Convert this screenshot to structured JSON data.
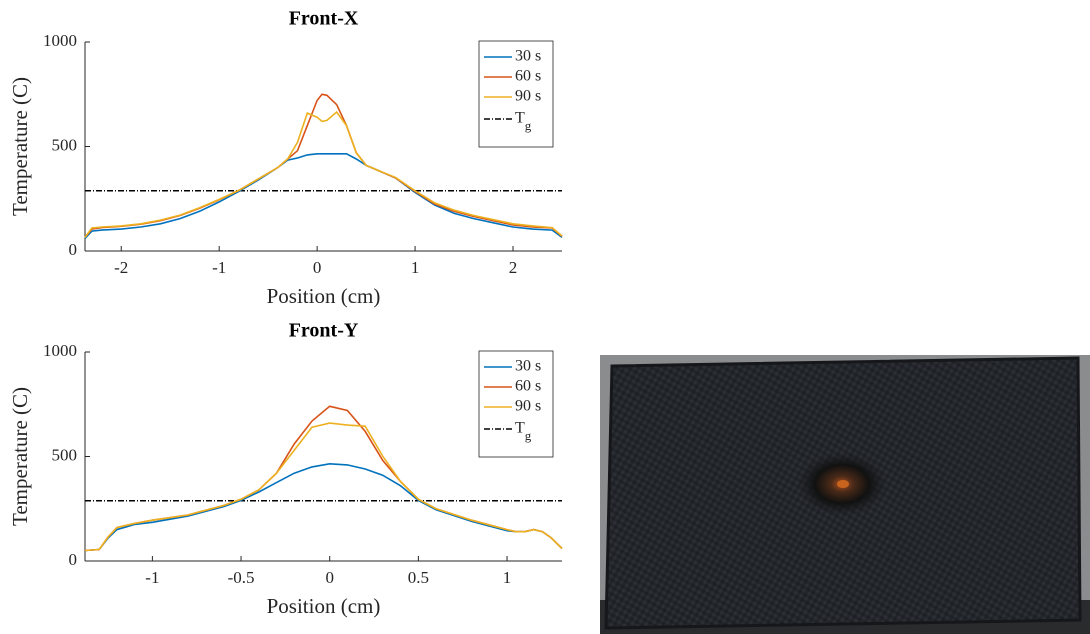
{
  "chart_data": [
    {
      "type": "line",
      "title": "Front-X",
      "xlabel": "Position (cm)",
      "ylabel": "Temperature (C)",
      "x": [
        -2.37,
        -2.3,
        -2.2,
        -2.0,
        -1.8,
        -1.6,
        -1.4,
        -1.2,
        -1.0,
        -0.8,
        -0.6,
        -0.4,
        -0.3,
        -0.2,
        -0.1,
        0,
        0.05,
        0.1,
        0.2,
        0.3,
        0.4,
        0.5,
        0.6,
        0.8,
        1.0,
        1.2,
        1.4,
        1.6,
        1.8,
        2.0,
        2.2,
        2.4,
        2.5
      ],
      "series": [
        {
          "name": "30 s",
          "color": "#0072bd",
          "values": [
            60,
            95,
            100,
            105,
            115,
            130,
            155,
            190,
            235,
            285,
            340,
            400,
            435,
            445,
            460,
            465,
            465,
            465,
            465,
            465,
            440,
            410,
            390,
            350,
            280,
            220,
            180,
            155,
            135,
            115,
            105,
            100,
            65
          ]
        },
        {
          "name": "60 s",
          "color": "#d95319",
          "values": [
            65,
            105,
            112,
            118,
            128,
            145,
            170,
            205,
            245,
            290,
            345,
            400,
            440,
            480,
            600,
            720,
            750,
            745,
            700,
            600,
            470,
            410,
            390,
            350,
            285,
            225,
            190,
            165,
            145,
            125,
            115,
            110,
            70
          ]
        },
        {
          "name": "90 s",
          "color": "#edb120",
          "values": [
            65,
            110,
            115,
            120,
            130,
            148,
            172,
            207,
            247,
            290,
            345,
            400,
            440,
            520,
            660,
            640,
            620,
            625,
            665,
            600,
            470,
            410,
            390,
            352,
            288,
            230,
            195,
            170,
            150,
            130,
            120,
            112,
            72
          ]
        }
      ],
      "hline": {
        "name": "Tg",
        "value": 288,
        "color": "#000000"
      },
      "xlim": [
        -2.37,
        2.5
      ],
      "ylim": [
        0,
        1000
      ],
      "xticks": [
        -2,
        -1,
        0,
        1,
        2
      ],
      "yticks": [
        0,
        500,
        1000
      ],
      "legend": "northeast"
    },
    {
      "type": "line",
      "title": "Front-Y",
      "xlabel": "Position (cm)",
      "ylabel": "Temperature (C)",
      "x": [
        -1.38,
        -1.3,
        -1.25,
        -1.2,
        -1.1,
        -1.0,
        -0.8,
        -0.6,
        -0.5,
        -0.4,
        -0.3,
        -0.2,
        -0.1,
        0,
        0.1,
        0.2,
        0.3,
        0.4,
        0.5,
        0.6,
        0.8,
        1.0,
        1.05,
        1.1,
        1.15,
        1.2,
        1.25,
        1.31
      ],
      "series": [
        {
          "name": "30 s",
          "color": "#0072bd",
          "values": [
            50,
            55,
            110,
            150,
            175,
            185,
            215,
            260,
            290,
            330,
            375,
            420,
            450,
            465,
            460,
            440,
            410,
            360,
            290,
            245,
            190,
            145,
            140,
            140,
            150,
            140,
            110,
            60
          ]
        },
        {
          "name": "60 s",
          "color": "#d95319",
          "values": [
            50,
            55,
            115,
            160,
            180,
            195,
            220,
            265,
            295,
            340,
            420,
            560,
            670,
            740,
            720,
            620,
            480,
            380,
            295,
            250,
            195,
            150,
            140,
            140,
            150,
            140,
            110,
            60
          ]
        },
        {
          "name": "90 s",
          "color": "#edb120",
          "values": [
            50,
            55,
            115,
            160,
            180,
            195,
            220,
            265,
            295,
            340,
            420,
            530,
            640,
            660,
            650,
            645,
            500,
            380,
            295,
            250,
            195,
            150,
            140,
            140,
            150,
            140,
            110,
            60
          ]
        }
      ],
      "hline": {
        "name": "Tg",
        "value": 288,
        "color": "#000000"
      },
      "xlim": [
        -1.38,
        1.31
      ],
      "ylim": [
        0,
        1000
      ],
      "xticks": [
        -1,
        -0.5,
        0,
        0.5,
        1
      ],
      "yticks": [
        0,
        500,
        1000
      ],
      "legend": "northeast"
    }
  ]
}
